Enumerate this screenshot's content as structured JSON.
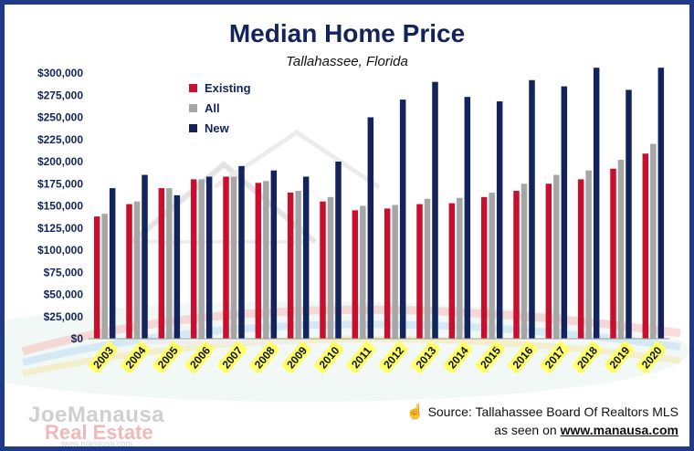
{
  "header": {
    "title": "Median Home Price",
    "subtitle": "Tallahassee, Florida"
  },
  "footer": {
    "source": "Source: Tallahassee Board Of Realtors MLS",
    "seen_prefix": "as seen on",
    "seen_url": "www.manausa.com",
    "logo_line1": "JoeManausa",
    "logo_line2": "Real Estate",
    "logo_url": "www.manausa.com"
  },
  "colors": {
    "existing": "#c8102e",
    "all": "#a6a6a6",
    "new": "#13235b",
    "frame": "#1f3a8a",
    "label_bg": "#ffff66"
  },
  "chart_data": {
    "type": "bar",
    "title": "Median Home Price",
    "subtitle": "Tallahassee, Florida",
    "categories": [
      "2003",
      "2004",
      "2005",
      "2006",
      "2007",
      "2008",
      "2009",
      "2010",
      "2011",
      "2012",
      "2013",
      "2014",
      "2015",
      "2016",
      "2017",
      "2018",
      "2019",
      "2020"
    ],
    "series": [
      {
        "name": "Existing",
        "values": [
          138000,
          152000,
          170000,
          180000,
          183000,
          176000,
          165000,
          155000,
          145000,
          147000,
          152000,
          153000,
          160000,
          167000,
          175000,
          180000,
          192000,
          209000
        ]
      },
      {
        "name": "All",
        "values": [
          141000,
          155000,
          170000,
          180000,
          183000,
          178000,
          167000,
          160000,
          150000,
          151000,
          158000,
          159000,
          165000,
          175000,
          185000,
          190000,
          202000,
          220000
        ]
      },
      {
        "name": "New",
        "values": [
          170000,
          185000,
          162000,
          183000,
          195000,
          190000,
          183000,
          200000,
          250000,
          270000,
          290000,
          273000,
          268000,
          292000,
          285000,
          310000,
          281000,
          310000
        ]
      }
    ],
    "ylim": [
      0,
      300000
    ],
    "y_ticks": [
      "$0",
      "$25,000",
      "$50,000",
      "$75,000",
      "$100,000",
      "$125,000",
      "$150,000",
      "$175,000",
      "$200,000",
      "$225,000",
      "$250,000",
      "$275,000",
      "$300,000"
    ],
    "y_tick_values": [
      0,
      25000,
      50000,
      75000,
      100000,
      125000,
      150000,
      175000,
      200000,
      225000,
      250000,
      275000,
      300000
    ],
    "legend_position": "top-left",
    "grid": false
  }
}
